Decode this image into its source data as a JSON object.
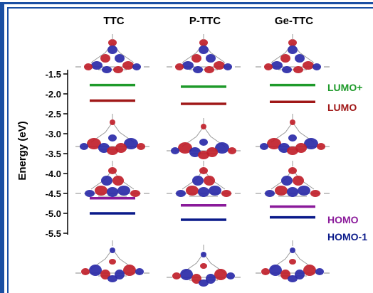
{
  "colors": {
    "frame": "#1a4fa3",
    "lumo_plus_1": "#1e9a2a",
    "lumo": "#a01818",
    "homo": "#8a1a9a",
    "homo_minus_1": "#0a1a8a",
    "lobe_red": "#c0202a",
    "lobe_blue": "#2a2aa8"
  },
  "chart_data": {
    "type": "energy-level diagram",
    "title": "",
    "xlabel": "",
    "ylabel": "Energy (eV)",
    "ylim": [
      -5.7,
      -1.3
    ],
    "yticks": [
      "-1.5",
      "-2.0",
      "-2.5",
      "-3.0",
      "-3.5",
      "-4.0",
      "-4.5",
      "-5.0",
      "-5.5"
    ],
    "ytick_values": [
      -1.5,
      -2.0,
      -2.5,
      -3.0,
      -3.5,
      -4.0,
      -4.5,
      -5.0,
      -5.5
    ],
    "categories": [
      "TTC",
      "P-TTC",
      "Ge-TTC"
    ],
    "series": [
      {
        "name": "LUMO+",
        "color": "#1e9a2a",
        "values": [
          -1.78,
          -1.82,
          -1.78
        ]
      },
      {
        "name": "LUMO",
        "color": "#a01818",
        "values": [
          -2.17,
          -2.25,
          -2.2
        ]
      },
      {
        "name": "HOMO",
        "color": "#8a1a9a",
        "values": [
          -4.62,
          -4.8,
          -4.83
        ]
      },
      {
        "name": "HOMO-1",
        "color": "#0a1a8a",
        "values": [
          -5.0,
          -5.16,
          -5.1
        ]
      }
    ],
    "orbital_images": [
      "LUMO+1 orbital",
      "LUMO orbital",
      "HOMO orbital",
      "HOMO-1 orbital"
    ]
  }
}
